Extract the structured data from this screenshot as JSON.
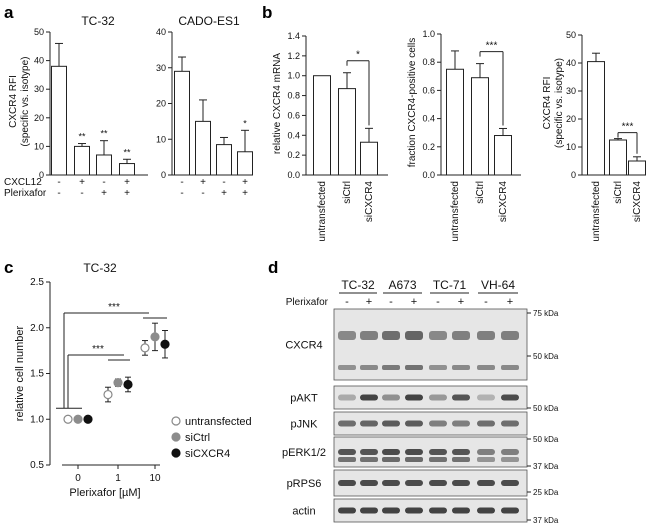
{
  "panels": {
    "a": "a",
    "b": "b",
    "c": "c",
    "d": "d"
  },
  "colors": {
    "axis": "#222222",
    "bar_fill": "#ffffff",
    "bar_stroke": "#222222",
    "untransfected": "#ffffff",
    "siCtrl": "#8c8c8c",
    "siCXCR4": "#111111",
    "blot_bg": "#e6e6e6",
    "band": "#3a3a3a"
  },
  "chart_data": [
    {
      "id": "a1",
      "type": "bar",
      "title": "TC-32",
      "ylabel": "CXCR4 RFI\n(specific vs. isotype)",
      "ylim": [
        0,
        50
      ],
      "yticks": [
        0,
        10,
        20,
        30,
        40,
        50
      ],
      "values": [
        38,
        10,
        7,
        4
      ],
      "errors": [
        8,
        1,
        5,
        1.5
      ],
      "sig": [
        "",
        "**",
        "**",
        "**"
      ],
      "conditions": [
        {
          "name": "CXCL12",
          "signs": [
            "-",
            "+",
            "-",
            "+"
          ]
        },
        {
          "name": "Plerixafor",
          "signs": [
            "-",
            "-",
            "+",
            "+"
          ]
        }
      ]
    },
    {
      "id": "a2",
      "type": "bar",
      "title": "CADO-ES1",
      "ylabel": "",
      "ylim": [
        0,
        40
      ],
      "yticks": [
        0,
        10,
        20,
        30,
        40
      ],
      "values": [
        29,
        15,
        8.5,
        6.5
      ],
      "errors": [
        4,
        6,
        2,
        6
      ],
      "sig": [
        "",
        "",
        "",
        "*"
      ],
      "signs": [
        [
          "-",
          "+",
          "-",
          "+"
        ],
        [
          "-",
          "-",
          "+",
          "+"
        ]
      ]
    },
    {
      "id": "b1",
      "type": "bar",
      "title": "",
      "ylabel": "relative CXCR4 mRNA",
      "ylim": [
        0,
        1.4
      ],
      "yticks": [
        "0.0",
        "0.2",
        "0.4",
        "0.6",
        "0.8",
        "1.0",
        "1.2",
        "1.4"
      ],
      "categories": [
        "untransfected",
        "siCtrl",
        "siCXCR4"
      ],
      "values": [
        1.0,
        0.87,
        0.33
      ],
      "errors": [
        0,
        0.16,
        0.14
      ],
      "bracket": "*"
    },
    {
      "id": "b2",
      "type": "bar",
      "title": "",
      "ylabel": "fraction CXCR4-positive cells",
      "ylim": [
        0,
        1.0
      ],
      "yticks": [
        "0.0",
        "0.2",
        "0.4",
        "0.6",
        "0.8",
        "1.0"
      ],
      "categories": [
        "untransfected",
        "siCtrl",
        "siCXCR4"
      ],
      "values": [
        0.75,
        0.69,
        0.28
      ],
      "errors": [
        0.13,
        0.1,
        0.05
      ],
      "bracket": "***"
    },
    {
      "id": "b3",
      "type": "bar",
      "title": "",
      "ylabel": "CXCR4 RFI\n(specific vs. isotype)",
      "ylim": [
        0,
        50
      ],
      "yticks": [
        0,
        10,
        20,
        30,
        40,
        50
      ],
      "categories": [
        "untransfected",
        "siCtrl",
        "siCXCR4"
      ],
      "values": [
        40.5,
        12.5,
        5
      ],
      "errors": [
        3,
        0.5,
        1.5
      ],
      "bracket": "***"
    },
    {
      "id": "c",
      "type": "scatter",
      "title": "TC-32",
      "xlabel": "Plerixafor [µM]",
      "ylabel": "relative cell number",
      "ylim": [
        0.5,
        2.5
      ],
      "yticks": [
        "0.5",
        "1.0",
        "1.5",
        "2.0",
        "2.5"
      ],
      "x": [
        "0",
        "1",
        "10"
      ],
      "series": [
        {
          "name": "untransfected",
          "values": [
            1.0,
            1.27,
            1.78
          ],
          "errors": [
            0,
            0.08,
            0.08
          ]
        },
        {
          "name": "siCtrl",
          "values": [
            1.0,
            1.4,
            1.9
          ],
          "errors": [
            0,
            0.04,
            0.15
          ]
        },
        {
          "name": "siCXCR4",
          "values": [
            1.0,
            1.38,
            1.82
          ],
          "errors": [
            0,
            0.08,
            0.15
          ]
        }
      ],
      "brackets": [
        "***",
        "***"
      ]
    }
  ],
  "blot": {
    "cell_lines": [
      "TC-32",
      "A673",
      "TC-71",
      "VH-64"
    ],
    "treatment": "Plerixafor",
    "signs": [
      "-",
      "+",
      "-",
      "+",
      "-",
      "+",
      "-",
      "+"
    ],
    "rows": [
      {
        "label": "CXCR4",
        "markers": [
          "75 kDa",
          "50 kDa"
        ],
        "intensities": [
          0.55,
          0.6,
          0.7,
          0.75,
          0.55,
          0.6,
          0.6,
          0.6
        ]
      },
      {
        "label": "pAKT",
        "markers": [
          "50 kDa"
        ],
        "intensities": [
          0.35,
          0.95,
          0.5,
          0.95,
          0.45,
          0.85,
          0.3,
          0.9
        ]
      },
      {
        "label": "pJNK",
        "markers": [],
        "intensities": [
          0.7,
          0.75,
          0.8,
          0.8,
          0.6,
          0.6,
          0.7,
          0.7
        ]
      },
      {
        "label": "pERK1/2",
        "markers": [
          "50 kDa",
          "37 kDa"
        ],
        "intensities": [
          0.85,
          0.85,
          0.9,
          0.9,
          0.85,
          0.85,
          0.6,
          0.6
        ]
      },
      {
        "label": "pRPS6",
        "markers": [
          "25 kDa"
        ],
        "intensities": [
          0.9,
          0.9,
          0.9,
          0.9,
          0.9,
          0.9,
          0.9,
          0.9
        ]
      },
      {
        "label": "actin",
        "markers": [
          "37 kDa"
        ],
        "intensities": [
          0.95,
          0.95,
          0.95,
          0.95,
          0.95,
          0.95,
          0.95,
          0.95
        ]
      }
    ]
  }
}
